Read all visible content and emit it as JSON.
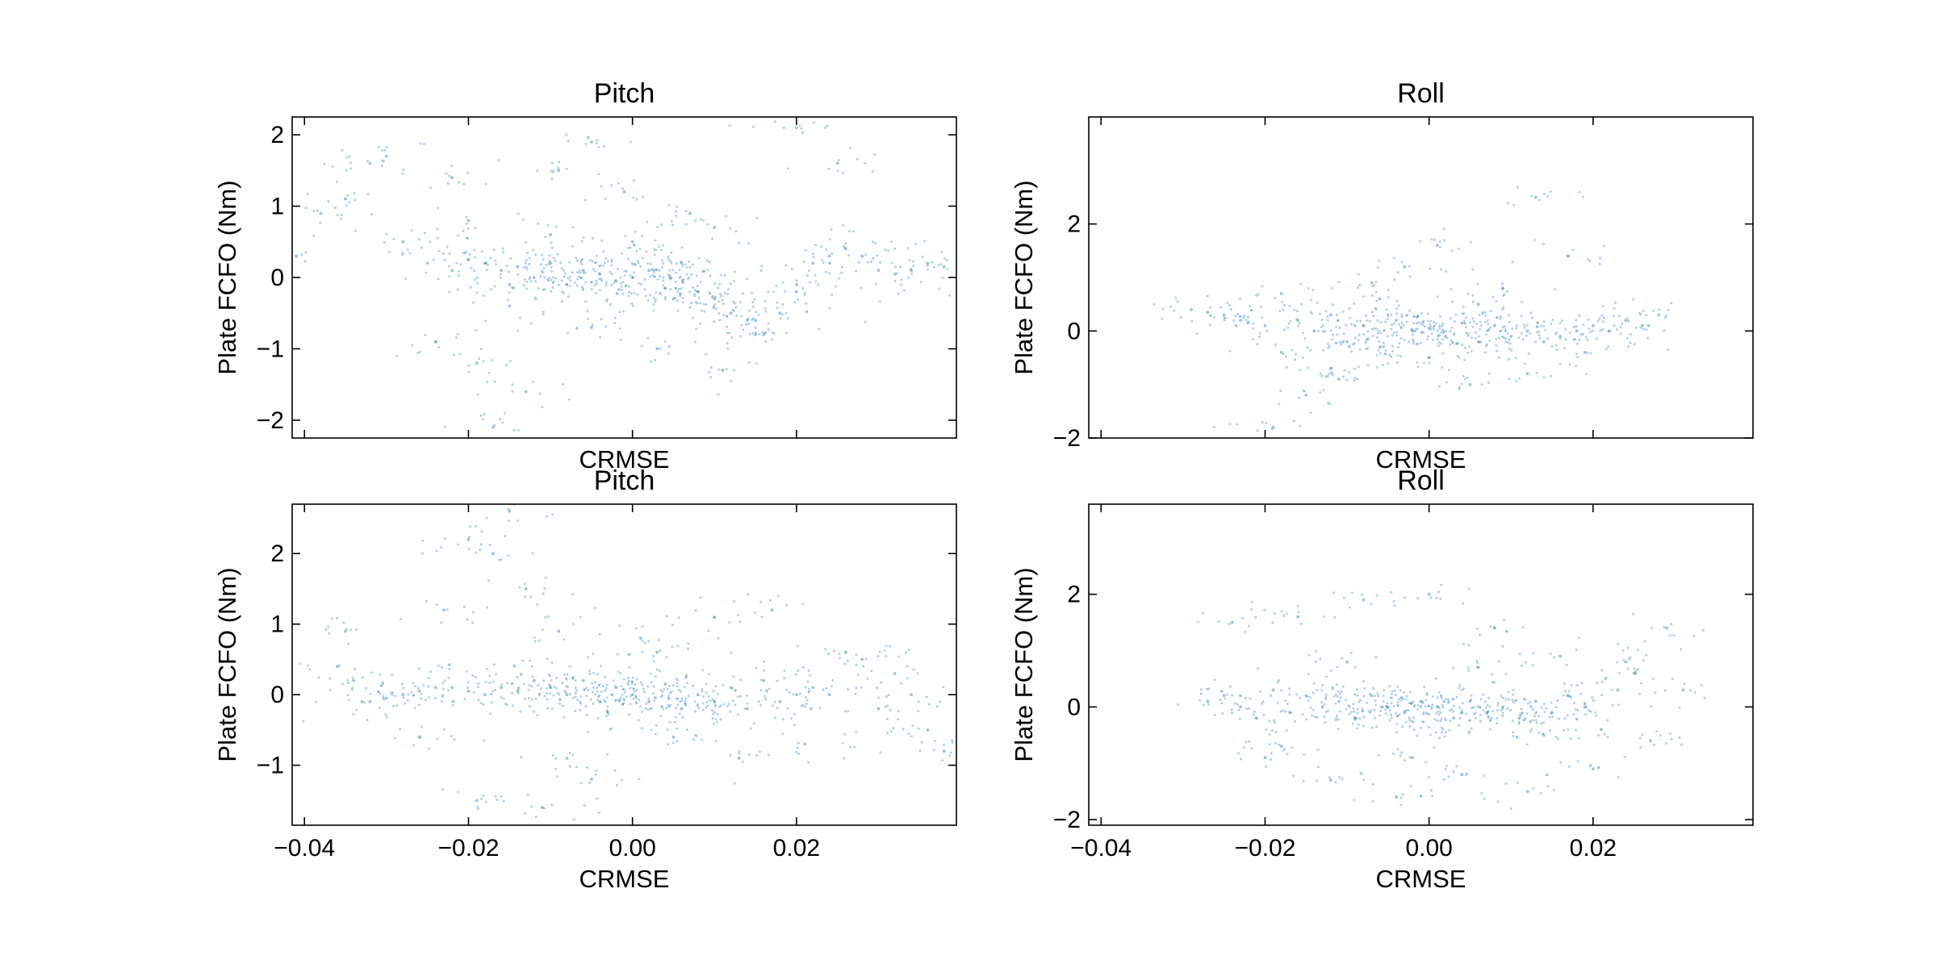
{
  "chart_data": [
    {
      "type": "scatter",
      "panel": "top-left",
      "title": "Pitch",
      "xlabel": "CRMSE",
      "ylabel": "Plate FCFO (Nm)",
      "xlim": [
        -0.0415,
        0.0395
      ],
      "ylim": [
        -2.25,
        2.25
      ],
      "xticks": [
        -0.04,
        -0.02,
        0.0,
        0.02
      ],
      "xtick_labels_shown": false,
      "yticks": [
        -2,
        -1,
        0,
        1,
        2
      ],
      "ytick_labels": [
        "−2",
        "−1",
        "0",
        "1",
        "2"
      ],
      "grid": false,
      "color": "#1f77b4",
      "series": [
        {
          "x": [
            -0.041,
            -0.038,
            -0.035,
            -0.032,
            -0.03,
            -0.028,
            -0.025,
            -0.022,
            -0.02,
            -0.018,
            -0.016,
            -0.015,
            -0.014,
            -0.012,
            -0.01,
            -0.008,
            -0.006,
            -0.004,
            -0.002,
            0.0,
            0.002,
            0.004,
            0.006,
            0.008,
            0.01,
            0.012,
            0.014,
            0.016,
            0.018,
            0.02,
            0.022,
            0.024,
            0.026,
            0.028,
            0.03,
            0.032,
            0.034,
            0.036,
            0.038,
            -0.022,
            -0.019,
            -0.017,
            -0.013,
            -0.009,
            -0.005,
            -0.001,
            0.003,
            0.007,
            0.011,
            0.015,
            0.02,
            0.025,
            -0.024,
            -0.02,
            -0.015,
            -0.01,
            -0.005,
            0.0,
            0.005,
            0.01,
            0.015,
            0.02
          ],
          "y": [
            0.3,
            0.9,
            1.1,
            1.6,
            1.7,
            0.5,
            0.2,
            0.1,
            0.25,
            0.2,
            0.1,
            -0.1,
            0.15,
            0.0,
            0.2,
            -0.1,
            0.1,
            0.05,
            -0.05,
            0.0,
            0.1,
            -0.15,
            0.2,
            -0.2,
            -0.3,
            -0.5,
            -0.6,
            -0.8,
            -0.5,
            -0.1,
            0.2,
            0.3,
            0.4,
            0.3,
            0.1,
            0.05,
            0.1,
            0.2,
            0.15,
            1.4,
            -1.2,
            -2.1,
            -1.6,
            1.5,
            1.9,
            1.2,
            -1.0,
            0.9,
            -1.3,
            -0.8,
            2.1,
            1.6,
            -0.9,
            0.8,
            -0.4,
            0.6,
            -0.7,
            0.5,
            -0.3,
            0.7,
            -0.6,
            -0.2
          ]
        }
      ]
    },
    {
      "type": "scatter",
      "panel": "top-right",
      "title": "Roll",
      "xlabel": "CRMSE",
      "ylabel": "Plate FCFO (Nm)",
      "xlim": [
        -0.0415,
        0.0395
      ],
      "ylim": [
        -2.0,
        4.0
      ],
      "xticks": [
        -0.04,
        -0.02,
        0.0,
        0.02
      ],
      "xtick_labels_shown": false,
      "yticks": [
        -2,
        0,
        2
      ],
      "ytick_labels": [
        "−2",
        "0",
        "2"
      ],
      "grid": false,
      "color": "#1f77b4",
      "series": [
        {
          "x": [
            -0.029,
            -0.027,
            -0.025,
            -0.023,
            -0.02,
            -0.018,
            -0.016,
            -0.014,
            -0.012,
            -0.01,
            -0.008,
            -0.006,
            -0.004,
            -0.002,
            0.0,
            0.002,
            0.004,
            0.006,
            0.008,
            0.01,
            0.012,
            0.014,
            0.016,
            0.018,
            0.02,
            0.022,
            0.024,
            0.026,
            0.028,
            -0.019,
            -0.015,
            -0.011,
            -0.007,
            -0.003,
            0.001,
            0.005,
            0.009,
            0.013,
            0.017,
            0.019,
            -0.018,
            -0.012,
            -0.006,
            0.0,
            0.006,
            0.012
          ],
          "y": [
            0.4,
            0.35,
            0.3,
            0.2,
            0.1,
            -0.4,
            0.2,
            0.0,
            0.3,
            -0.2,
            0.1,
            -0.3,
            0.2,
            0.0,
            0.05,
            -0.1,
            0.15,
            -0.2,
            0.1,
            -0.1,
            0.0,
            -0.2,
            -0.1,
            0.0,
            0.1,
            0.0,
            0.2,
            0.1,
            0.3,
            -1.8,
            -1.2,
            -0.9,
            0.9,
            1.2,
            1.6,
            -1.0,
            0.8,
            2.5,
            1.4,
            -0.4,
            0.7,
            -0.7,
            0.6,
            -0.5,
            0.5,
            -0.8
          ]
        }
      ]
    },
    {
      "type": "scatter",
      "panel": "bottom-left",
      "title": "Pitch",
      "xlabel": "CRMSE",
      "ylabel": "Plate FCFO (Nm)",
      "xlim": [
        -0.0415,
        0.0395
      ],
      "ylim": [
        -1.85,
        2.7
      ],
      "xticks": [
        -0.04,
        -0.02,
        0.0,
        0.02
      ],
      "xtick_labels": [
        "−0.04",
        "−0.02",
        "0.00",
        "0.02"
      ],
      "yticks": [
        -1,
        0,
        1,
        2
      ],
      "ytick_labels": [
        "−1",
        "0",
        "1",
        "2"
      ],
      "grid": false,
      "color": "#1f77b4",
      "series": [
        {
          "x": [
            -0.036,
            -0.035,
            -0.034,
            -0.033,
            -0.032,
            -0.03,
            -0.028,
            -0.026,
            -0.024,
            -0.022,
            -0.02,
            -0.018,
            -0.016,
            -0.014,
            -0.012,
            -0.01,
            -0.008,
            -0.006,
            -0.004,
            -0.002,
            0.0,
            0.002,
            0.004,
            0.006,
            0.008,
            0.01,
            0.012,
            0.014,
            0.016,
            0.018,
            0.02,
            0.022,
            0.024,
            0.026,
            0.028,
            0.03,
            0.032,
            0.034,
            0.036,
            0.038,
            -0.023,
            -0.02,
            -0.017,
            -0.015,
            -0.013,
            -0.011,
            -0.009,
            -0.005,
            0.001,
            0.005,
            0.01,
            0.017,
            -0.026,
            -0.019,
            -0.008,
            0.003,
            0.013,
            0.021
          ],
          "y": [
            0.4,
            0.9,
            0.2,
            -0.1,
            -0.1,
            -0.05,
            0.0,
            0.05,
            0.1,
            0.1,
            0.05,
            0.0,
            0.1,
            0.05,
            0.2,
            0.1,
            0.0,
            0.2,
            -0.1,
            0.1,
            0.0,
            -0.1,
            0.15,
            -0.2,
            0.0,
            -0.1,
            0.1,
            -0.2,
            0.2,
            -0.1,
            0.0,
            0.1,
            0.0,
            0.6,
            0.5,
            -0.2,
            0.3,
            0.0,
            -0.5,
            -0.8,
            1.2,
            2.2,
            2.0,
            2.6,
            1.5,
            -1.6,
            0.9,
            -1.2,
            0.8,
            -0.6,
            1.1,
            1.2,
            -0.6,
            -1.5,
            -0.9,
            0.6,
            -0.9,
            -0.7
          ]
        }
      ]
    },
    {
      "type": "scatter",
      "panel": "bottom-right",
      "title": "Roll",
      "xlabel": "CRMSE",
      "ylabel": "Plate FCFO (Nm)",
      "xlim": [
        -0.0415,
        0.0395
      ],
      "ylim": [
        -2.1,
        3.6
      ],
      "xticks": [
        -0.04,
        -0.02,
        0.0,
        0.02
      ],
      "xtick_labels": [
        "−0.04",
        "−0.02",
        "0.00",
        "0.02"
      ],
      "yticks": [
        -2,
        0,
        2
      ],
      "ytick_labels": [
        "−2",
        "0",
        "2"
      ],
      "grid": false,
      "color": "#1f77b4",
      "series": [
        {
          "x": [
            -0.027,
            -0.025,
            -0.023,
            -0.021,
            -0.019,
            -0.017,
            -0.015,
            -0.013,
            -0.011,
            -0.009,
            -0.007,
            -0.005,
            -0.003,
            -0.001,
            0.001,
            0.003,
            0.005,
            0.007,
            0.009,
            0.011,
            0.013,
            0.015,
            0.017,
            0.019,
            0.021,
            0.023,
            0.025,
            0.027,
            0.029,
            0.031,
            -0.024,
            -0.02,
            -0.016,
            -0.012,
            -0.008,
            -0.004,
            0.0,
            0.004,
            0.008,
            0.012,
            0.016,
            0.02,
            0.024,
            -0.018,
            -0.01,
            -0.002,
            0.006,
            0.014
          ],
          "y": [
            0.1,
            0.2,
            0.0,
            -0.2,
            0.3,
            -0.1,
            0.2,
            0.0,
            0.1,
            -0.2,
            0.2,
            0.0,
            -0.1,
            0.1,
            0.0,
            -0.2,
            0.1,
            -0.1,
            0.0,
            -0.2,
            0.1,
            -0.1,
            0.2,
            0.0,
            -0.4,
            0.3,
            0.6,
            -0.6,
            1.4,
            0.3,
            1.5,
            -0.9,
            1.6,
            -1.3,
            1.9,
            -1.6,
            2.0,
            -1.2,
            1.4,
            -1.5,
            0.9,
            -1.1,
            0.8,
            -0.7,
            0.8,
            -0.9,
            0.7,
            -0.5
          ]
        }
      ]
    }
  ]
}
